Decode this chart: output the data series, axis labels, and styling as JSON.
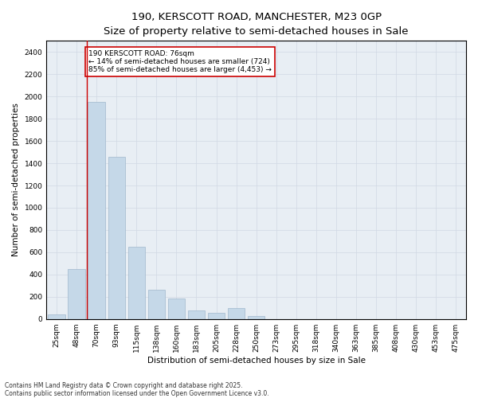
{
  "title1": "190, KERSCOTT ROAD, MANCHESTER, M23 0GP",
  "title2": "Size of property relative to semi-detached houses in Sale",
  "xlabel": "Distribution of semi-detached houses by size in Sale",
  "ylabel": "Number of semi-detached properties",
  "categories": [
    "25sqm",
    "48sqm",
    "70sqm",
    "93sqm",
    "115sqm",
    "138sqm",
    "160sqm",
    "183sqm",
    "205sqm",
    "228sqm",
    "250sqm",
    "273sqm",
    "295sqm",
    "318sqm",
    "340sqm",
    "363sqm",
    "385sqm",
    "408sqm",
    "430sqm",
    "453sqm",
    "475sqm"
  ],
  "values": [
    40,
    450,
    1950,
    1460,
    650,
    260,
    185,
    80,
    55,
    100,
    30,
    0,
    0,
    0,
    0,
    0,
    0,
    0,
    0,
    0,
    0
  ],
  "bar_color": "#c5d8e8",
  "bar_edge_color": "#a0b8cc",
  "vline_x": 1.5,
  "vline_color": "#cc0000",
  "annotation_text": "190 KERSCOTT ROAD: 76sqm\n← 14% of semi-detached houses are smaller (724)\n85% of semi-detached houses are larger (4,453) →",
  "annotation_box_color": "#ffffff",
  "annotation_box_edge": "#cc0000",
  "ylim": [
    0,
    2500
  ],
  "yticks": [
    0,
    200,
    400,
    600,
    800,
    1000,
    1200,
    1400,
    1600,
    1800,
    2000,
    2200,
    2400
  ],
  "grid_color": "#d0d8e4",
  "bg_color": "#e8eef4",
  "footnote": "Contains HM Land Registry data © Crown copyright and database right 2025.\nContains public sector information licensed under the Open Government Licence v3.0.",
  "title_fontsize": 9.5,
  "subtitle_fontsize": 8.5,
  "annotation_fontsize": 6.5,
  "tick_fontsize": 6.5,
  "label_fontsize": 7.5,
  "footnote_fontsize": 5.5
}
